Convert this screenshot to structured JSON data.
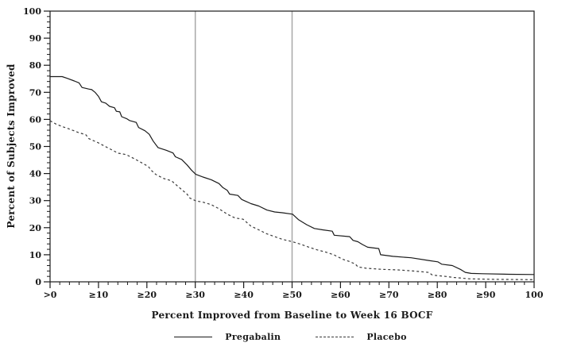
{
  "chart_data": {
    "type": "line",
    "title": "",
    "xlabel": "Percent Improved from Baseline to Week 16 BOCF",
    "ylabel": "Percent of Subjects Improved",
    "xlim": [
      0,
      100
    ],
    "ylim": [
      0,
      100
    ],
    "grid": false,
    "minor_tick_step": 2,
    "axis_color": "#1a1a1a",
    "reference_line_color": "#a8a8a8",
    "reference_lines_x": [
      30,
      50
    ],
    "x_ticks": [
      {
        "v": 0,
        "label": ">0"
      },
      {
        "v": 10,
        "label": "≥10"
      },
      {
        "v": 20,
        "label": "≥20"
      },
      {
        "v": 30,
        "label": "≥30"
      },
      {
        "v": 40,
        "label": "≥40"
      },
      {
        "v": 50,
        "label": "≥50"
      },
      {
        "v": 60,
        "label": "≥60"
      },
      {
        "v": 70,
        "label": "≥70"
      },
      {
        "v": 80,
        "label": "≥80"
      },
      {
        "v": 90,
        "label": "≥90"
      },
      {
        "v": 100,
        "label": "100"
      }
    ],
    "y_ticks": [
      {
        "v": 0,
        "label": "0"
      },
      {
        "v": 10,
        "label": "10"
      },
      {
        "v": 20,
        "label": "20"
      },
      {
        "v": 30,
        "label": "30"
      },
      {
        "v": 40,
        "label": "40"
      },
      {
        "v": 50,
        "label": "50"
      },
      {
        "v": 60,
        "label": "60"
      },
      {
        "v": 70,
        "label": "70"
      },
      {
        "v": 80,
        "label": "80"
      },
      {
        "v": 90,
        "label": "90"
      },
      {
        "v": 100,
        "label": "100"
      }
    ],
    "legend_position": "bottom",
    "series": [
      {
        "name": "Pregabalin",
        "style": "solid",
        "color": "#1a1a1a",
        "points": [
          [
            0,
            75.8
          ],
          [
            2.5,
            75.8
          ],
          [
            3.5,
            75.2
          ],
          [
            5,
            74.2
          ],
          [
            6,
            73.5
          ],
          [
            6.6,
            71.8
          ],
          [
            8,
            71.2
          ],
          [
            8.6,
            71
          ],
          [
            9.3,
            70
          ],
          [
            10,
            68.5
          ],
          [
            10.6,
            66.5
          ],
          [
            11.5,
            66
          ],
          [
            12.3,
            64.8
          ],
          [
            13.3,
            64.3
          ],
          [
            13.7,
            63
          ],
          [
            14.4,
            62.8
          ],
          [
            14.8,
            61
          ],
          [
            15.8,
            60.3
          ],
          [
            16.4,
            59.6
          ],
          [
            17.8,
            58.9
          ],
          [
            18.3,
            57
          ],
          [
            19.6,
            55.8
          ],
          [
            20.5,
            54.5
          ],
          [
            21.3,
            52
          ],
          [
            22.3,
            49.6
          ],
          [
            24,
            48.6
          ],
          [
            25.4,
            47.6
          ],
          [
            25.9,
            46.2
          ],
          [
            27.2,
            45.2
          ],
          [
            28.3,
            43.2
          ],
          [
            29.2,
            41.3
          ],
          [
            30.1,
            39.7
          ],
          [
            31.6,
            38.7
          ],
          [
            33.3,
            37.7
          ],
          [
            34.9,
            36.3
          ],
          [
            35.7,
            34.8
          ],
          [
            36.6,
            33.8
          ],
          [
            37.1,
            32.4
          ],
          [
            38.8,
            31.9
          ],
          [
            39.6,
            30.4
          ],
          [
            41.5,
            28.9
          ],
          [
            43.1,
            28
          ],
          [
            44.8,
            26.5
          ],
          [
            46.4,
            25.8
          ],
          [
            48,
            25.5
          ],
          [
            50.1,
            25
          ],
          [
            51.3,
            23
          ],
          [
            53,
            21.1
          ],
          [
            54.6,
            19.7
          ],
          [
            56.3,
            19.2
          ],
          [
            58.3,
            18.7
          ],
          [
            58.7,
            17.2
          ],
          [
            61.9,
            16.7
          ],
          [
            62.6,
            15.3
          ],
          [
            63.6,
            14.8
          ],
          [
            64.5,
            13.8
          ],
          [
            65.6,
            12.8
          ],
          [
            67.9,
            12.3
          ],
          [
            68.3,
            10
          ],
          [
            70.8,
            9.4
          ],
          [
            74.6,
            8.9
          ],
          [
            78.2,
            7.9
          ],
          [
            80.1,
            7.4
          ],
          [
            80.9,
            6.5
          ],
          [
            83.1,
            6
          ],
          [
            84.9,
            4.5
          ],
          [
            85.8,
            3.5
          ],
          [
            87,
            3.1
          ],
          [
            89.4,
            3
          ],
          [
            94.8,
            2.8
          ],
          [
            100,
            2.7
          ]
        ]
      },
      {
        "name": "Placebo",
        "style": "dashed",
        "color": "#3a3a3a",
        "points": [
          [
            0,
            59.5
          ],
          [
            1.2,
            58.3
          ],
          [
            2.6,
            57.3
          ],
          [
            4.2,
            56.3
          ],
          [
            5.8,
            55.2
          ],
          [
            7.4,
            54.3
          ],
          [
            8,
            52.9
          ],
          [
            9.9,
            51.4
          ],
          [
            11.4,
            50
          ],
          [
            13,
            48.5
          ],
          [
            14.1,
            47.5
          ],
          [
            15.7,
            47
          ],
          [
            16.5,
            46.3
          ],
          [
            18,
            44.9
          ],
          [
            19.3,
            43.6
          ],
          [
            20.3,
            42.6
          ],
          [
            20.9,
            41.2
          ],
          [
            21.8,
            39.7
          ],
          [
            23.4,
            38.2
          ],
          [
            25.1,
            37.3
          ],
          [
            26.7,
            34.8
          ],
          [
            28.3,
            32.4
          ],
          [
            28.9,
            30.9
          ],
          [
            30.1,
            29.9
          ],
          [
            31.6,
            29.4
          ],
          [
            33.3,
            28.5
          ],
          [
            34.9,
            27
          ],
          [
            36.6,
            25
          ],
          [
            38.2,
            23.6
          ],
          [
            39.9,
            23.1
          ],
          [
            41.5,
            20.6
          ],
          [
            43.1,
            19.2
          ],
          [
            44.8,
            17.7
          ],
          [
            46.4,
            16.7
          ],
          [
            48,
            15.7
          ],
          [
            50.1,
            14.8
          ],
          [
            51.9,
            13.8
          ],
          [
            53.5,
            12.8
          ],
          [
            55.2,
            11.8
          ],
          [
            57.1,
            10.9
          ],
          [
            58.7,
            9.9
          ],
          [
            60.4,
            8.4
          ],
          [
            62,
            7.4
          ],
          [
            63.1,
            6.5
          ],
          [
            63.6,
            5.5
          ],
          [
            65.3,
            5
          ],
          [
            68.6,
            4.6
          ],
          [
            71.9,
            4.4
          ],
          [
            75.1,
            4
          ],
          [
            78.2,
            3.5
          ],
          [
            79,
            2.5
          ],
          [
            81.7,
            2
          ],
          [
            83.4,
            1.6
          ],
          [
            86.6,
            1.1
          ],
          [
            92.1,
            0.9
          ],
          [
            100,
            0.8
          ]
        ]
      }
    ]
  }
}
